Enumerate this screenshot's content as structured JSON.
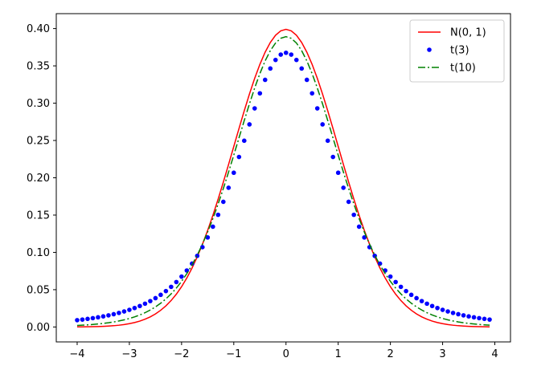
{
  "chart_data": {
    "type": "line",
    "title": "",
    "xlabel": "",
    "ylabel": "",
    "xlim": [
      -4.4,
      4.3
    ],
    "ylim": [
      -0.02,
      0.42
    ],
    "x_ticks": [
      -4,
      -3,
      -2,
      -1,
      0,
      1,
      2,
      3,
      4
    ],
    "x_tick_labels": [
      "−4",
      "−3",
      "−2",
      "−1",
      "0",
      "1",
      "2",
      "3",
      "4"
    ],
    "y_ticks": [
      0.0,
      0.05,
      0.1,
      0.15,
      0.2,
      0.25,
      0.3,
      0.35,
      0.4
    ],
    "y_tick_labels": [
      "0.00",
      "0.05",
      "0.10",
      "0.15",
      "0.20",
      "0.25",
      "0.30",
      "0.35",
      "0.40"
    ],
    "x_range": [
      -4.0,
      3.9
    ],
    "x_step": 0.1,
    "grid": false,
    "legend_position": "top-right",
    "series": [
      {
        "name": "N(0, 1)",
        "distribution": "normal",
        "style": "solid",
        "color": "#ff0000"
      },
      {
        "name": "t(3)",
        "distribution": "t",
        "df": 3,
        "style": "dots",
        "color": "#0000ff"
      },
      {
        "name": "t(10)",
        "distribution": "t",
        "df": 10,
        "style": "dashdot",
        "color": "#008000"
      }
    ]
  }
}
